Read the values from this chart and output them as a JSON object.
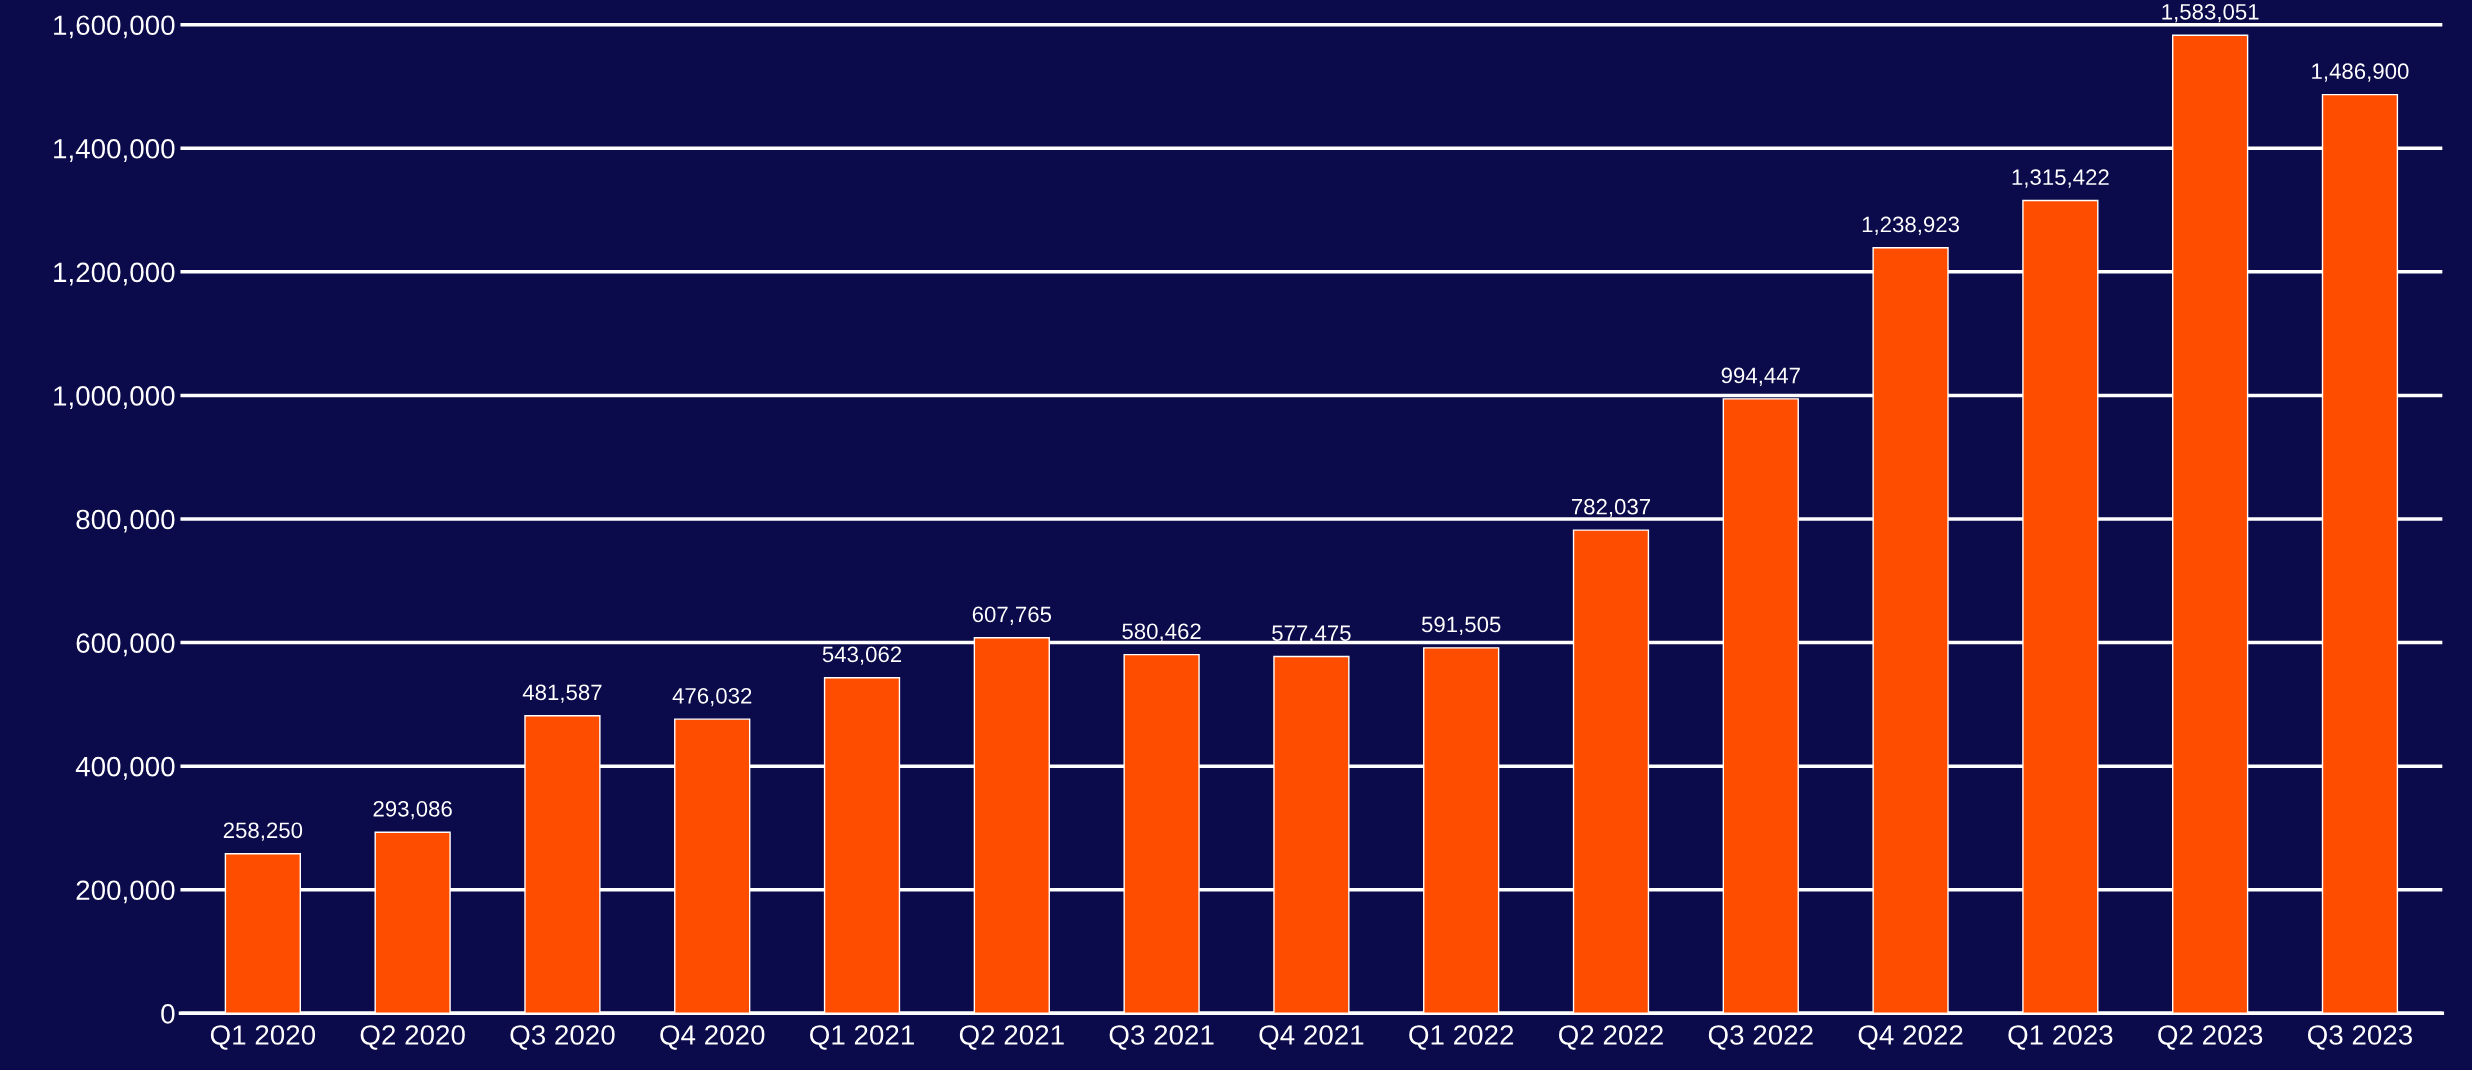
{
  "chart_data": {
    "type": "bar",
    "categories": [
      "Q1 2020",
      "Q2 2020",
      "Q3 2020",
      "Q4 2020",
      "Q1 2021",
      "Q2 2021",
      "Q3 2021",
      "Q4 2021",
      "Q1 2022",
      "Q2 2022",
      "Q3 2022",
      "Q4 2022",
      "Q1 2023",
      "Q2 2023",
      "Q3 2023"
    ],
    "values": [
      258250,
      293086,
      481587,
      476032,
      543062,
      607765,
      580462,
      577475,
      591505,
      782037,
      994447,
      1238923,
      1315422,
      1583051,
      1486900
    ],
    "value_labels": [
      "258,250",
      "293,086",
      "481,587",
      "476,032",
      "543,062",
      "607,765",
      "580,462",
      "577,475",
      "591,505",
      "782,037",
      "994,447",
      "1,238,923",
      "1,315,422",
      "1,583,051",
      "1,486,900"
    ],
    "color": "#ff4d00",
    "ylim": [
      0,
      1640000
    ],
    "yticks": [
      {
        "value": 0,
        "label": "0"
      },
      {
        "value": 200000,
        "label": "200,000"
      },
      {
        "value": 400000,
        "label": "400,000"
      },
      {
        "value": 600000,
        "label": "600,000"
      },
      {
        "value": 800000,
        "label": "800,000"
      },
      {
        "value": 1000000,
        "label": "1,000,000"
      },
      {
        "value": 1200000,
        "label": "1,200,000"
      },
      {
        "value": 1400000,
        "label": "1,400,000"
      },
      {
        "value": 1600000,
        "label": "1,600,000"
      }
    ],
    "grid": "y"
  }
}
